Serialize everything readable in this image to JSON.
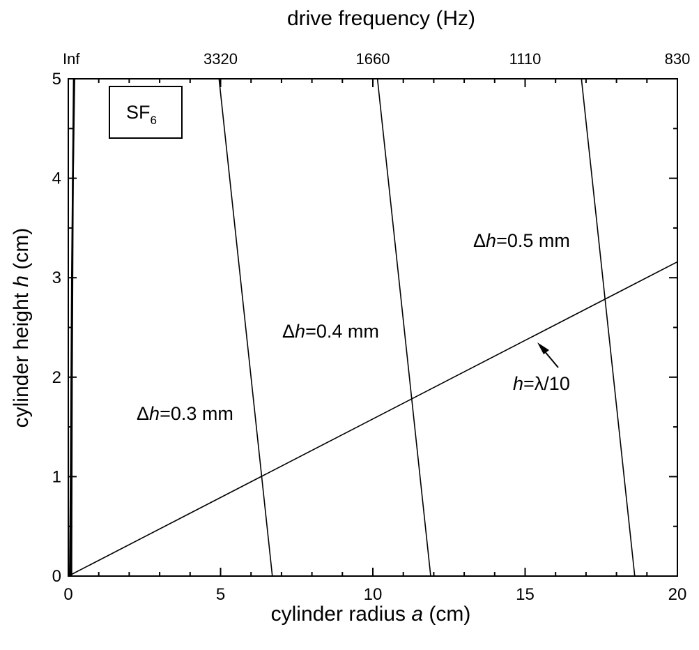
{
  "chart_data": {
    "type": "line",
    "xlabel": "cylinder radius a (cm)",
    "ylabel": "cylinder height h (cm)",
    "top_xlabel": "drive frequency (Hz)",
    "xlim": [
      0,
      20
    ],
    "ylim": [
      0,
      5
    ],
    "x_ticks": [
      0,
      5,
      10,
      15,
      20
    ],
    "y_ticks": [
      0,
      1,
      2,
      3,
      4,
      5
    ],
    "top_ticks": [
      {
        "label": "Inf",
        "a": 0
      },
      {
        "label": "3320",
        "a": 5
      },
      {
        "label": "1660",
        "a": 10
      },
      {
        "label": "1110",
        "a": 15
      },
      {
        "label": "830",
        "a": 20
      }
    ],
    "legend_box": {
      "main": "SF",
      "sub": "6"
    },
    "series": [
      {
        "points": [
          [
            0.05,
            0
          ],
          [
            0.08,
            1
          ],
          [
            0.1,
            2
          ],
          [
            0.12,
            3
          ],
          [
            0.15,
            4
          ],
          [
            0.18,
            5
          ]
        ]
      },
      {
        "points": [
          [
            0.1,
            0
          ],
          [
            0.12,
            2
          ],
          [
            0.15,
            4
          ],
          [
            0.2,
            5
          ]
        ]
      },
      {
        "name": "Δh=0.3 mm",
        "points": [
          [
            6.7,
            0
          ],
          [
            4.95,
            5
          ]
        ]
      },
      {
        "name": "Δh=0.4 mm",
        "points": [
          [
            11.9,
            0
          ],
          [
            10.15,
            5
          ]
        ]
      },
      {
        "name": "Δh=0.5 mm",
        "points": [
          [
            18.6,
            0
          ],
          [
            16.85,
            5
          ]
        ]
      },
      {
        "name": "h=λ/10",
        "points": [
          [
            0,
            0
          ],
          [
            20,
            3.16
          ]
        ]
      }
    ],
    "annotations": {
      "dh03": {
        "pre": "Δ",
        "var": "h",
        "post": "=0.3 mm"
      },
      "dh04": {
        "pre": "Δ",
        "var": "h",
        "post": "=0.4 mm"
      },
      "dh05": {
        "pre": "Δ",
        "var": "h",
        "post": "=0.5 mm"
      },
      "hlambda": {
        "var": "h",
        "post": "=λ/10"
      }
    },
    "grid": false
  }
}
